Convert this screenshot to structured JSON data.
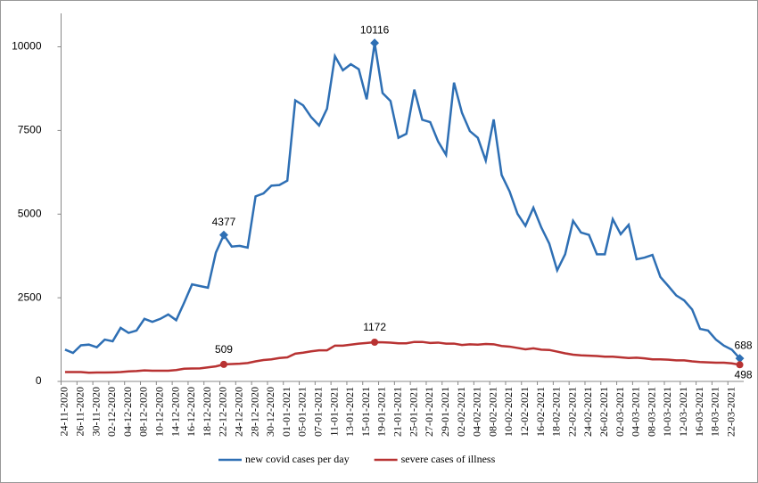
{
  "chart_data": {
    "type": "line",
    "categories": [
      "24-11-2020",
      null,
      "26-11-2020",
      null,
      "30-11-2020",
      null,
      "02-12-2020",
      null,
      "04-12-2020",
      null,
      "08-12-2020",
      null,
      "10-12-2020",
      null,
      "14-12-2020",
      null,
      "16-12-2020",
      null,
      "18-12-2020",
      null,
      "22-12-2020",
      null,
      "24-12-2020",
      null,
      "28-12-2020",
      null,
      "30-12-2020",
      null,
      "01-01-2021",
      null,
      "05-01-2021",
      null,
      "07-01-2021",
      null,
      "11-01-2021",
      null,
      "13-01-2021",
      null,
      "15-01-2021",
      null,
      "19-01-2021",
      null,
      "21-01-2021",
      null,
      "25-01-2021",
      null,
      "27-01-2021",
      null,
      "29-01-2021",
      null,
      "02-02-2021",
      null,
      "04-02-2021",
      null,
      "08-02-2021",
      null,
      "10-02-2021",
      null,
      "12-02-2021",
      null,
      "16-02-2021",
      null,
      "18-02-2021",
      null,
      "22-02-2021",
      null,
      "24-02-2021",
      null,
      "26-02-2021",
      null,
      "02-03-2021",
      null,
      "04-03-2021",
      null,
      "08-03-2021",
      null,
      "10-03-2021",
      null,
      "12-03-2021",
      null,
      "16-03-2021",
      null,
      "18-03-2021",
      null,
      "22-03-2021",
      null
    ],
    "series": [
      {
        "name": "new covid cases per day",
        "color": "#2e6fb4",
        "values": [
          950,
          850,
          1080,
          1100,
          1020,
          1250,
          1200,
          1600,
          1450,
          1520,
          1870,
          1780,
          1870,
          2000,
          1830,
          2350,
          2900,
          2850,
          2800,
          3850,
          4377,
          4030,
          4050,
          4000,
          5530,
          5620,
          5850,
          5870,
          6000,
          8400,
          8250,
          7900,
          7650,
          8150,
          9720,
          9300,
          9480,
          9330,
          8430,
          10116,
          8620,
          8380,
          7280,
          7400,
          8720,
          7820,
          7750,
          7170,
          6770,
          8930,
          8030,
          7480,
          7280,
          6600,
          7830,
          6170,
          5680,
          5010,
          4650,
          5190,
          4600,
          4120,
          3320,
          3800,
          4800,
          4450,
          4380,
          3800,
          3800,
          4850,
          4400,
          4680,
          3650,
          3700,
          3780,
          3120,
          2850,
          2570,
          2420,
          2150,
          1570,
          1520,
          1250,
          1070,
          950,
          688
        ]
      },
      {
        "name": "severe cases of illness",
        "color": "#b83232",
        "values": [
          280,
          280,
          280,
          260,
          265,
          265,
          270,
          280,
          300,
          310,
          330,
          320,
          320,
          320,
          340,
          380,
          385,
          390,
          420,
          450,
          509,
          520,
          530,
          550,
          600,
          640,
          660,
          700,
          720,
          830,
          860,
          900,
          930,
          930,
          1070,
          1070,
          1100,
          1130,
          1150,
          1172,
          1170,
          1160,
          1140,
          1140,
          1180,
          1180,
          1150,
          1160,
          1130,
          1130,
          1090,
          1110,
          1100,
          1120,
          1110,
          1060,
          1040,
          1000,
          960,
          990,
          950,
          940,
          890,
          840,
          800,
          780,
          770,
          760,
          740,
          740,
          720,
          700,
          710,
          690,
          660,
          660,
          650,
          630,
          630,
          600,
          580,
          570,
          560,
          560,
          540,
          498
        ]
      }
    ],
    "ylim": [
      0,
      11000
    ],
    "yticks": [
      0,
      2500,
      5000,
      7500,
      10000
    ],
    "grid": false,
    "legend": "bottom"
  }
}
